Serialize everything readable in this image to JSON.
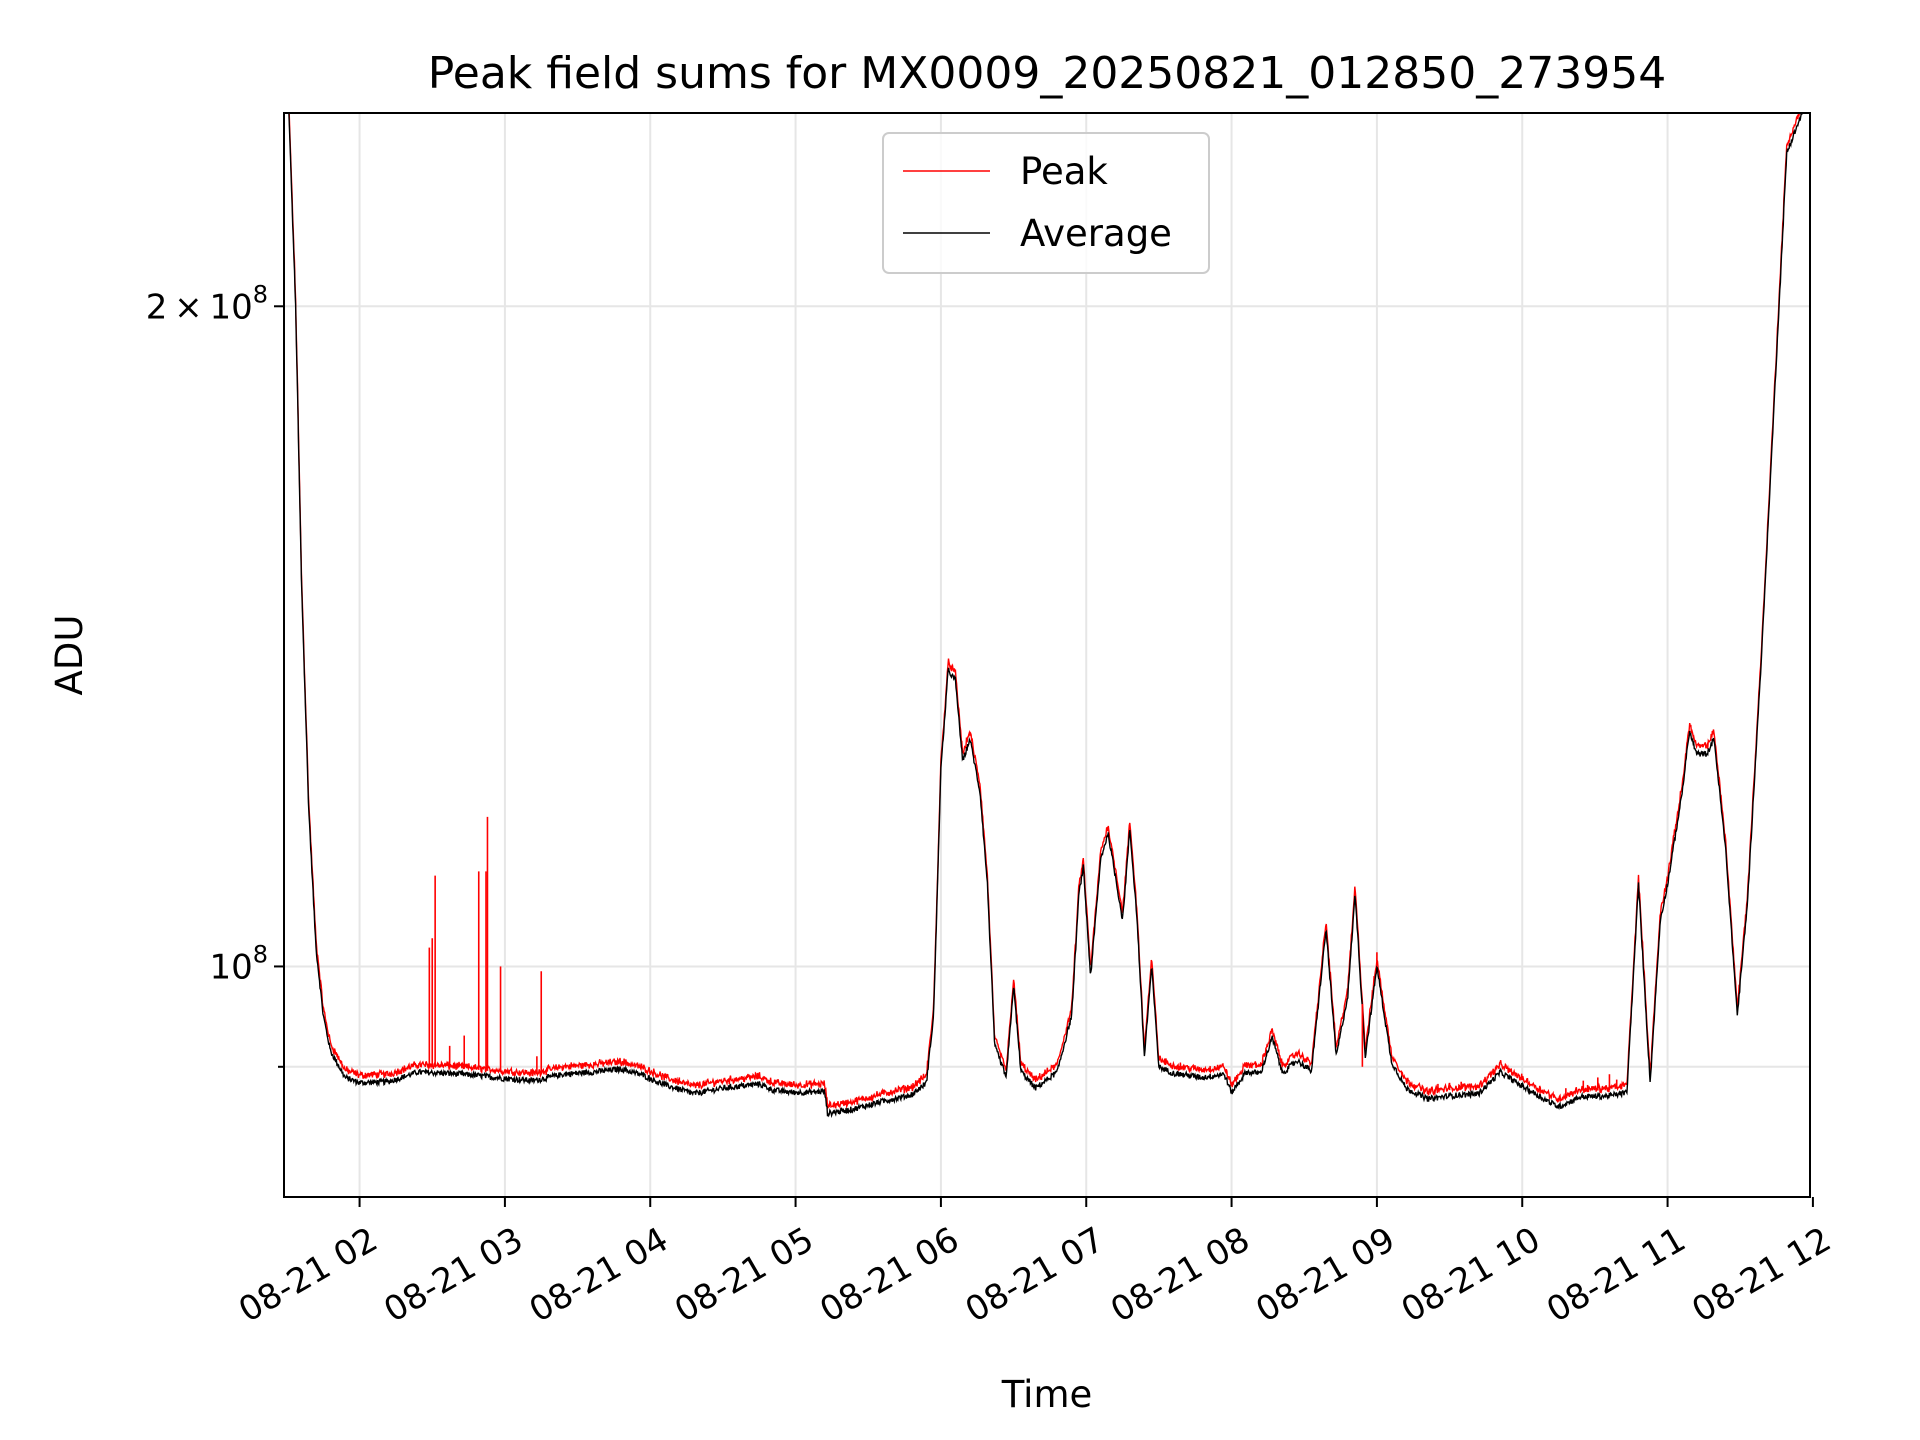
{
  "chart_data": {
    "type": "line",
    "title": "Peak field sums for MX0009_20250821_012850_273954",
    "xlabel": "Time",
    "ylabel": "ADU",
    "x_unit": "hour of 2025-08-21",
    "y_scale": "log",
    "xlim": [
      1.48,
      11.98
    ],
    "ylim": [
      78500000,
      245000000
    ],
    "grid": true,
    "legend_position": "upper center",
    "x_ticks": [
      {
        "value": 2,
        "label": "08-21 02"
      },
      {
        "value": 3,
        "label": "08-21 03"
      },
      {
        "value": 4,
        "label": "08-21 04"
      },
      {
        "value": 5,
        "label": "08-21 05"
      },
      {
        "value": 6,
        "label": "08-21 06"
      },
      {
        "value": 7,
        "label": "08-21 07"
      },
      {
        "value": 8,
        "label": "08-21 08"
      },
      {
        "value": 9,
        "label": "08-21 09"
      },
      {
        "value": 10,
        "label": "08-21 10"
      },
      {
        "value": 11,
        "label": "08-21 11"
      },
      {
        "value": 12,
        "label": "08-21 12"
      }
    ],
    "y_major_ticks": [
      {
        "value": 100000000,
        "base": "10",
        "exp": "8"
      },
      {
        "value": 200000000,
        "mantissa": "2",
        "base": "10",
        "exp": "8"
      }
    ],
    "y_minor_ticks": [
      90000000
    ],
    "series": [
      {
        "name": "Average",
        "color": "#000000",
        "points": [
          [
            1.5,
            260000000
          ],
          [
            1.56,
            200000000
          ],
          [
            1.6,
            150000000
          ],
          [
            1.65,
            118000000
          ],
          [
            1.7,
            102000000
          ],
          [
            1.75,
            95000000
          ],
          [
            1.8,
            91500000
          ],
          [
            1.9,
            89000000
          ],
          [
            2.0,
            88500000
          ],
          [
            2.2,
            88600000
          ],
          [
            2.4,
            89500000
          ],
          [
            2.6,
            89400000
          ],
          [
            2.8,
            89200000
          ],
          [
            3.0,
            88900000
          ],
          [
            3.2,
            88700000
          ],
          [
            3.4,
            89300000
          ],
          [
            3.6,
            89500000
          ],
          [
            3.8,
            89800000
          ],
          [
            3.95,
            89200000
          ],
          [
            4.1,
            88300000
          ],
          [
            4.3,
            87500000
          ],
          [
            4.5,
            88000000
          ],
          [
            4.75,
            88400000
          ],
          [
            4.85,
            87800000
          ],
          [
            5.0,
            87600000
          ],
          [
            5.2,
            87700000
          ],
          [
            5.22,
            85700000
          ],
          [
            5.4,
            86100000
          ],
          [
            5.6,
            86800000
          ],
          [
            5.8,
            87400000
          ],
          [
            5.9,
            88500000
          ],
          [
            5.95,
            95000000
          ],
          [
            6.0,
            123000000
          ],
          [
            6.05,
            136500000
          ],
          [
            6.1,
            135000000
          ],
          [
            6.15,
            124000000
          ],
          [
            6.2,
            127000000
          ],
          [
            6.27,
            120000000
          ],
          [
            6.32,
            109000000
          ],
          [
            6.37,
            92000000
          ],
          [
            6.45,
            89000000
          ],
          [
            6.5,
            98000000
          ],
          [
            6.55,
            89600000
          ],
          [
            6.65,
            88000000
          ],
          [
            6.8,
            89500000
          ],
          [
            6.9,
            95000000
          ],
          [
            6.95,
            108000000
          ],
          [
            6.98,
            111000000
          ],
          [
            7.03,
            99000000
          ],
          [
            7.1,
            112000000
          ],
          [
            7.15,
            115000000
          ],
          [
            7.2,
            110000000
          ],
          [
            7.25,
            105000000
          ],
          [
            7.3,
            115500000
          ],
          [
            7.35,
            105000000
          ],
          [
            7.4,
            91000000
          ],
          [
            7.45,
            100000000
          ],
          [
            7.5,
            90000000
          ],
          [
            7.6,
            89400000
          ],
          [
            7.8,
            89000000
          ],
          [
            7.95,
            89300000
          ],
          [
            8.0,
            87600000
          ],
          [
            8.1,
            89500000
          ],
          [
            8.2,
            89400000
          ],
          [
            8.28,
            92800000
          ],
          [
            8.35,
            89400000
          ],
          [
            8.45,
            90600000
          ],
          [
            8.55,
            89600000
          ],
          [
            8.65,
            104000000
          ],
          [
            8.72,
            91000000
          ],
          [
            8.8,
            97000000
          ],
          [
            8.85,
            108000000
          ],
          [
            8.92,
            91000000
          ],
          [
            9.0,
            100000000
          ],
          [
            9.1,
            90500000
          ],
          [
            9.2,
            88000000
          ],
          [
            9.35,
            87000000
          ],
          [
            9.5,
            87300000
          ],
          [
            9.7,
            87500000
          ],
          [
            9.85,
            89500000
          ],
          [
            9.95,
            88600000
          ],
          [
            10.15,
            87000000
          ],
          [
            10.25,
            86300000
          ],
          [
            10.4,
            87200000
          ],
          [
            10.6,
            87300000
          ],
          [
            10.72,
            87600000
          ],
          [
            10.8,
            109000000
          ],
          [
            10.88,
            88500000
          ],
          [
            10.95,
            105000000
          ],
          [
            11.0,
            109000000
          ],
          [
            11.1,
            120000000
          ],
          [
            11.15,
            128000000
          ],
          [
            11.2,
            125000000
          ],
          [
            11.27,
            125000000
          ],
          [
            11.32,
            127000000
          ],
          [
            11.4,
            113000000
          ],
          [
            11.48,
            95000000
          ],
          [
            11.55,
            107000000
          ],
          [
            11.65,
            140000000
          ],
          [
            11.75,
            190000000
          ],
          [
            11.82,
            235000000
          ],
          [
            11.98,
            250000000
          ]
        ]
      },
      {
        "name": "Peak",
        "color": "#ff0000",
        "offset_ratio": 1.006,
        "spikes": [
          [
            2.48,
            102000000
          ],
          [
            2.5,
            103000000
          ],
          [
            2.52,
            110000000
          ],
          [
            2.62,
            92000000
          ],
          [
            2.72,
            93000000
          ],
          [
            2.82,
            110500000
          ],
          [
            2.87,
            110500000
          ],
          [
            2.88,
            117000000
          ],
          [
            2.97,
            100000000
          ],
          [
            3.22,
            91000000
          ],
          [
            3.25,
            99500000
          ],
          [
            3.6,
            90000000
          ],
          [
            4.2,
            89000000
          ],
          [
            8.28,
            93500000
          ],
          [
            8.9,
            90000000
          ],
          [
            9.0,
            101500000
          ],
          [
            9.42,
            88400000
          ],
          [
            9.5,
            88500000
          ],
          [
            9.58,
            88600000
          ],
          [
            10.3,
            88000000
          ],
          [
            10.42,
            88700000
          ],
          [
            10.45,
            88300000
          ],
          [
            10.52,
            89000000
          ],
          [
            10.6,
            89300000
          ],
          [
            10.65,
            88800000
          ]
        ]
      }
    ]
  }
}
